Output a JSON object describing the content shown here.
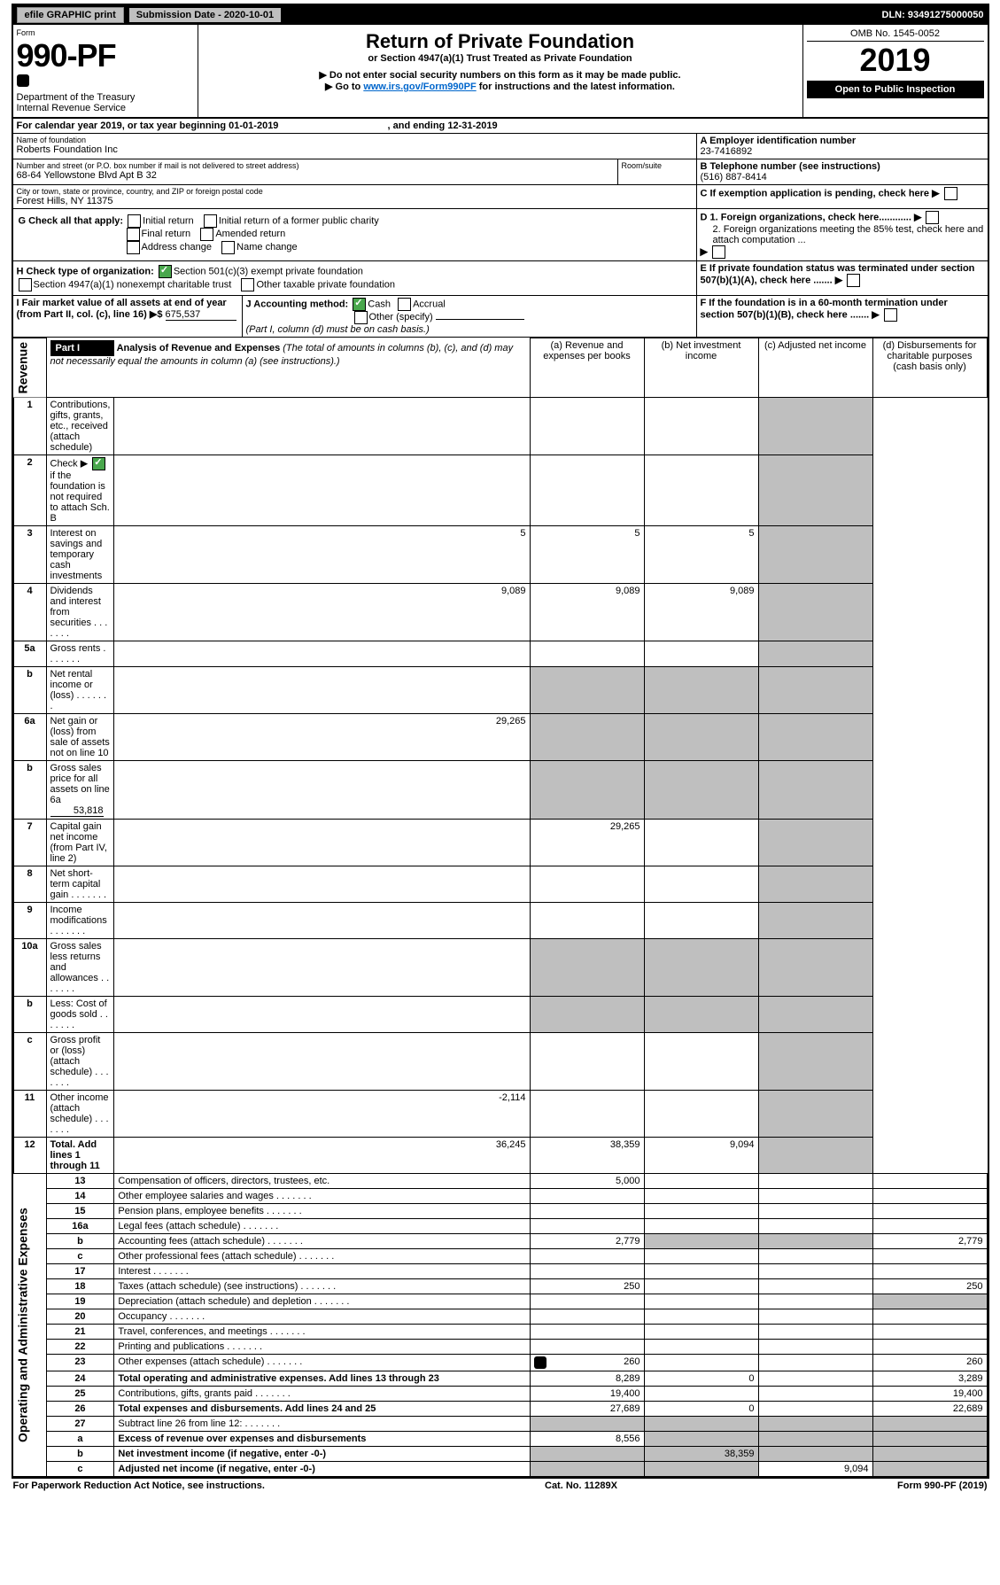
{
  "topbar": {
    "efile": "efile GRAPHIC print",
    "subdate_label": "Submission Date - 2020-10-01",
    "dln": "DLN: 93491275000050"
  },
  "header": {
    "form_label": "Form",
    "form_num": "990-PF",
    "dept": "Department of the Treasury",
    "irs": "Internal Revenue Service",
    "title": "Return of Private Foundation",
    "subtitle": "or Section 4947(a)(1) Trust Treated as Private Foundation",
    "note1": "▶ Do not enter social security numbers on this form as it may be made public.",
    "note2": "▶ Go to ",
    "link": "www.irs.gov/Form990PF",
    "note2b": " for instructions and the latest information.",
    "omb": "OMB No. 1545-0052",
    "year": "2019",
    "inspection": "Open to Public Inspection"
  },
  "calyear": {
    "pre": "For calendar year 2019, or tax year beginning ",
    "begin": "01-01-2019",
    "mid": " , and ending ",
    "end": "12-31-2019"
  },
  "org": {
    "name_label": "Name of foundation",
    "name": "Roberts Foundation Inc",
    "addr_label": "Number and street (or P.O. box number if mail is not delivered to street address)",
    "room_label": "Room/suite",
    "addr": "68-64 Yellowstone Blvd Apt B 32",
    "city_label": "City or town, state or province, country, and ZIP or foreign postal code",
    "city": "Forest Hills, NY  11375",
    "ein_label": "A Employer identification number",
    "ein": "23-7416892",
    "tel_label": "B Telephone number (see instructions)",
    "tel": "(516) 887-8414",
    "c": "C If exemption application is pending, check here",
    "d1": "D 1. Foreign organizations, check here............",
    "d2": "2. Foreign organizations meeting the 85% test, check here and attach computation ...",
    "e": "E  If private foundation status was terminated under section 507(b)(1)(A), check here .......",
    "f": "F  If the foundation is in a 60-month termination under section 507(b)(1)(B), check here ......."
  },
  "g": {
    "label": "G Check all that apply:",
    "opts": [
      "Initial return",
      "Initial return of a former public charity",
      "Final return",
      "Amended return",
      "Address change",
      "Name change"
    ]
  },
  "h": {
    "label": "H Check type of organization:",
    "a": "Section 501(c)(3) exempt private foundation",
    "b": "Section 4947(a)(1) nonexempt charitable trust",
    "c": "Other taxable private foundation"
  },
  "i": {
    "label": "I Fair market value of all assets at end of year (from Part II, col. (c), line 16) ▶$",
    "val": "675,537"
  },
  "j": {
    "label": "J Accounting method:",
    "cash": "Cash",
    "accrual": "Accrual",
    "other": "Other (specify)",
    "note": "(Part I, column (d) must be on cash basis.)"
  },
  "part1": {
    "hdr": "Part I",
    "title": "Analysis of Revenue and Expenses",
    "title_note": "(The total of amounts in columns (b), (c), and (d) may not necessarily equal the amounts in column (a) (see instructions).)",
    "cols": {
      "a": "(a)  Revenue and expenses per books",
      "b": "(b)  Net investment income",
      "c": "(c)  Adjusted net income",
      "d": "(d)  Disbursements for charitable purposes (cash basis only)"
    },
    "sections": {
      "rev": "Revenue",
      "exp": "Operating and Administrative Expenses"
    },
    "rows": [
      {
        "n": "1",
        "d": "Contributions, gifts, grants, etc., received (attach schedule)"
      },
      {
        "n": "2",
        "d": "Check ▶",
        "chk": true,
        "d2": " if the foundation is not required to attach Sch. B"
      },
      {
        "n": "3",
        "d": "Interest on savings and temporary cash investments",
        "a": "5",
        "b": "5",
        "c": "5"
      },
      {
        "n": "4",
        "d": "Dividends and interest from securities",
        "a": "9,089",
        "b": "9,089",
        "c": "9,089"
      },
      {
        "n": "5a",
        "d": "Gross rents"
      },
      {
        "n": "b",
        "d": "Net rental income or (loss)"
      },
      {
        "n": "6a",
        "d": "Net gain or (loss) from sale of assets not on line 10",
        "a": "29,265"
      },
      {
        "n": "b",
        "d": "Gross sales price for all assets on line 6a",
        "u": "53,818"
      },
      {
        "n": "7",
        "d": "Capital gain net income (from Part IV, line 2)",
        "b": "29,265"
      },
      {
        "n": "8",
        "d": "Net short-term capital gain"
      },
      {
        "n": "9",
        "d": "Income modifications"
      },
      {
        "n": "10a",
        "d": "Gross sales less returns and allowances"
      },
      {
        "n": "b",
        "d": "Less: Cost of goods sold"
      },
      {
        "n": "c",
        "d": "Gross profit or (loss) (attach schedule)"
      },
      {
        "n": "11",
        "d": "Other income (attach schedule)",
        "a": "-2,114"
      },
      {
        "n": "12",
        "d": "Total. Add lines 1 through 11",
        "bold": true,
        "a": "36,245",
        "b": "38,359",
        "c": "9,094"
      },
      {
        "n": "13",
        "d": "Compensation of officers, directors, trustees, etc.",
        "a": "5,000",
        "sec": "exp"
      },
      {
        "n": "14",
        "d": "Other employee salaries and wages"
      },
      {
        "n": "15",
        "d": "Pension plans, employee benefits"
      },
      {
        "n": "16a",
        "d": "Legal fees (attach schedule)"
      },
      {
        "n": "b",
        "d": "Accounting fees (attach schedule)",
        "a": "2,779",
        "dd": "2,779"
      },
      {
        "n": "c",
        "d": "Other professional fees (attach schedule)"
      },
      {
        "n": "17",
        "d": "Interest"
      },
      {
        "n": "18",
        "d": "Taxes (attach schedule) (see instructions)",
        "a": "250",
        "dd": "250"
      },
      {
        "n": "19",
        "d": "Depreciation (attach schedule) and depletion"
      },
      {
        "n": "20",
        "d": "Occupancy"
      },
      {
        "n": "21",
        "d": "Travel, conferences, and meetings"
      },
      {
        "n": "22",
        "d": "Printing and publications"
      },
      {
        "n": "23",
        "d": "Other expenses (attach schedule)",
        "a": "260",
        "dd": "260",
        "icon": true
      },
      {
        "n": "24",
        "d": "Total operating and administrative expenses. Add lines 13 through 23",
        "bold": true,
        "a": "8,289",
        "b": "0",
        "dd": "3,289"
      },
      {
        "n": "25",
        "d": "Contributions, gifts, grants paid",
        "a": "19,400",
        "dd": "19,400"
      },
      {
        "n": "26",
        "d": "Total expenses and disbursements. Add lines 24 and 25",
        "bold": true,
        "a": "27,689",
        "b": "0",
        "dd": "22,689"
      },
      {
        "n": "27",
        "d": "Subtract line 26 from line 12:",
        "sec": "none"
      },
      {
        "n": "a",
        "d": "Excess of revenue over expenses and disbursements",
        "bold": true,
        "a": "8,556"
      },
      {
        "n": "b",
        "d": "Net investment income (if negative, enter -0-)",
        "bold": true,
        "b": "38,359"
      },
      {
        "n": "c",
        "d": "Adjusted net income (if negative, enter -0-)",
        "bold": true,
        "c": "9,094"
      }
    ]
  },
  "footer": {
    "paperwork": "For Paperwork Reduction Act Notice, see instructions.",
    "cat": "Cat. No. 11289X",
    "form": "Form 990-PF (2019)"
  }
}
